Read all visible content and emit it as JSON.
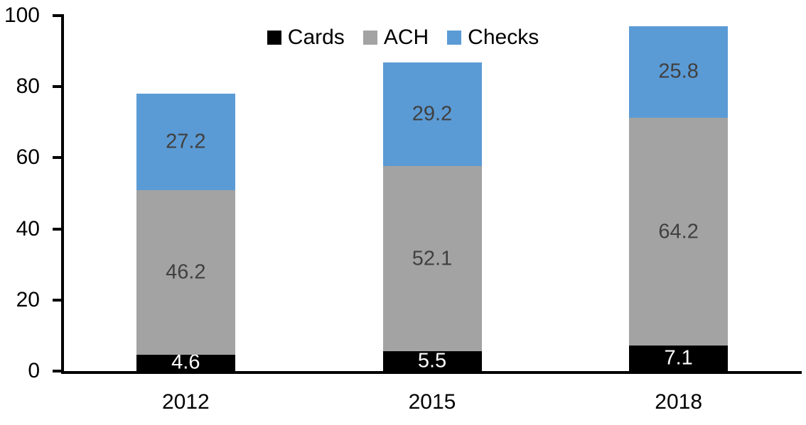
{
  "chart_data": {
    "type": "bar",
    "stacked": true,
    "title": "",
    "xlabel": "",
    "ylabel": "",
    "categories": [
      "2012",
      "2015",
      "2018"
    ],
    "series": [
      {
        "name": "Cards",
        "color": "#000000",
        "label_color": "#ffffff",
        "values": [
          4.6,
          5.5,
          7.1
        ]
      },
      {
        "name": "ACH",
        "color": "#a3a3a3",
        "label_color": "#404040",
        "values": [
          46.2,
          52.1,
          64.2
        ]
      },
      {
        "name": "Checks",
        "color": "#5b9bd5",
        "label_color": "#404040",
        "values": [
          27.2,
          29.2,
          25.8
        ]
      }
    ],
    "totals": [
      78.0,
      86.8,
      97.1
    ],
    "ylim": [
      0,
      100
    ],
    "yticks": [
      0,
      20,
      40,
      60,
      80,
      100
    ],
    "grid": false,
    "data_labels": "center-of-segment",
    "legend": {
      "position": "top-center",
      "entries": [
        "Cards",
        "ACH",
        "Checks"
      ]
    },
    "axis_color": "#000000",
    "tick_label_color": "#000000",
    "background_color": "#ffffff"
  }
}
